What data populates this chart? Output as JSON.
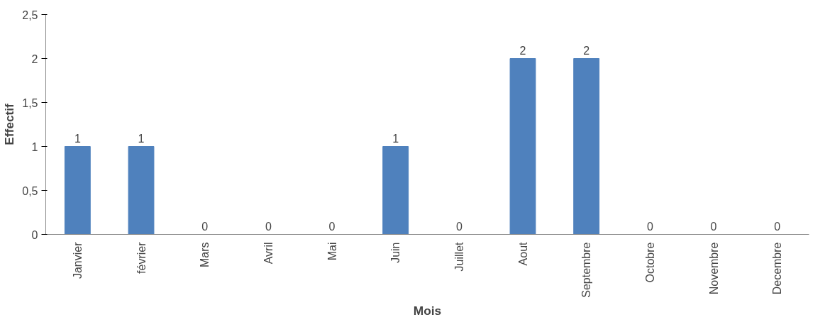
{
  "chart_data": {
    "type": "bar",
    "xlabel": "Mois",
    "ylabel": "Effectif",
    "categories": [
      "Janvier",
      "février",
      "Mars",
      "Avril",
      "Mai",
      "Juin",
      "Juillet",
      "Aout",
      "Septembre",
      "Octobre",
      "Novembre",
      "Decembre"
    ],
    "values": [
      1,
      1,
      0,
      0,
      0,
      1,
      0,
      2,
      2,
      0,
      0,
      0
    ],
    "color": "#4f81bd",
    "ylim": [
      0,
      2.5
    ],
    "yticks": [
      0,
      {
        "value": 0.5,
        "label": "0,5"
      },
      1,
      {
        "value": 1.5,
        "label": "1,5"
      },
      2,
      {
        "value": 2.5,
        "label": "2,5"
      }
    ],
    "data_labels": true,
    "grid": false
  }
}
